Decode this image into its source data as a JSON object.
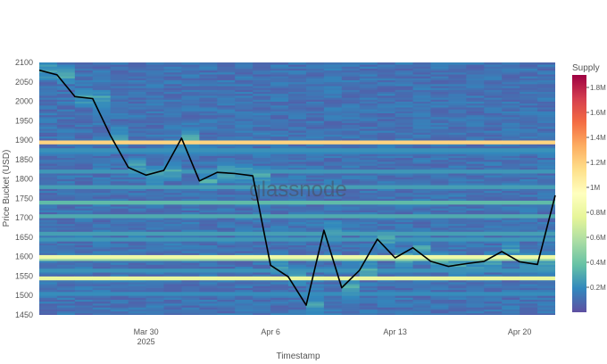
{
  "watermark": "glassnode",
  "chart_data": {
    "type": "heatmap",
    "xlabel": "Timestamp",
    "ylabel": "Price Bucket (USD)",
    "colorbar_title": "Supply",
    "x_range": [
      "2025-03-24",
      "2025-04-22"
    ],
    "ylim": [
      1450,
      2100
    ],
    "y_ticks": [
      1450,
      1500,
      1550,
      1600,
      1650,
      1700,
      1750,
      1800,
      1850,
      1900,
      1950,
      2000,
      2050,
      2100
    ],
    "y_tick_labels": [
      "1450",
      "1500",
      "1550",
      "1600",
      "1650",
      "1700",
      "1750",
      "1800",
      "1850",
      "1900",
      "1950",
      "2000",
      "2050",
      "2100"
    ],
    "x_ticks": [
      {
        "date": "2025-03-30",
        "label": "Mar 30",
        "sublabel": "2025"
      },
      {
        "date": "2025-04-06",
        "label": "Apr 6",
        "sublabel": ""
      },
      {
        "date": "2025-04-13",
        "label": "Apr 13",
        "sublabel": ""
      },
      {
        "date": "2025-04-20",
        "label": "Apr 20",
        "sublabel": ""
      }
    ],
    "colorbar_range": [
      0,
      1900000
    ],
    "colorbar_ticks": [
      200000,
      400000,
      600000,
      800000,
      1000000,
      1200000,
      1400000,
      1600000,
      1800000
    ],
    "colorbar_tick_labels": [
      "0.2M",
      "0.4M",
      "0.6M",
      "0.8M",
      "1M",
      "1.2M",
      "1.4M",
      "1.6M",
      "1.8M"
    ],
    "colorscale": [
      "#5e4fa2",
      "#3288bd",
      "#66c2a5",
      "#abdda4",
      "#e6f598",
      "#ffffbf",
      "#fee08b",
      "#fdae61",
      "#f46d43",
      "#d53e4f",
      "#9e0142"
    ],
    "supply_bands": [
      {
        "price": 1895,
        "supply": 1500000
      },
      {
        "price": 1600,
        "supply": 1050000
      },
      {
        "price": 1595,
        "supply": 650000
      },
      {
        "price": 1545,
        "supply": 1000000
      },
      {
        "price": 1740,
        "supply": 450000
      },
      {
        "price": 1705,
        "supply": 380000
      },
      {
        "price": 1780,
        "supply": 330000
      },
      {
        "price": 1820,
        "supply": 300000
      },
      {
        "price": 1660,
        "supply": 330000
      },
      {
        "price": 1645,
        "supply": 300000
      },
      {
        "price": 1565,
        "supply": 280000
      },
      {
        "price": 1505,
        "supply": 260000
      },
      {
        "price": 1875,
        "supply": 280000
      },
      {
        "price": 1870,
        "supply": 240000
      }
    ],
    "price_series": {
      "x": [
        "2025-03-24",
        "2025-03-25",
        "2025-03-26",
        "2025-03-27",
        "2025-03-28",
        "2025-03-29",
        "2025-03-30",
        "2025-03-31",
        "2025-04-01",
        "2025-04-02",
        "2025-04-03",
        "2025-04-04",
        "2025-04-05",
        "2025-04-06",
        "2025-04-07",
        "2025-04-08",
        "2025-04-09",
        "2025-04-10",
        "2025-04-11",
        "2025-04-12",
        "2025-04-13",
        "2025-04-14",
        "2025-04-15",
        "2025-04-16",
        "2025-04-17",
        "2025-04-18",
        "2025-04-19",
        "2025-04-20",
        "2025-04-21",
        "2025-04-22"
      ],
      "y": [
        2080,
        2068,
        2012,
        2007,
        1912,
        1830,
        1810,
        1822,
        1905,
        1795,
        1817,
        1814,
        1808,
        1578,
        1548,
        1475,
        1668,
        1520,
        1565,
        1645,
        1597,
        1623,
        1588,
        1575,
        1582,
        1588,
        1613,
        1587,
        1580,
        1758
      ]
    }
  }
}
